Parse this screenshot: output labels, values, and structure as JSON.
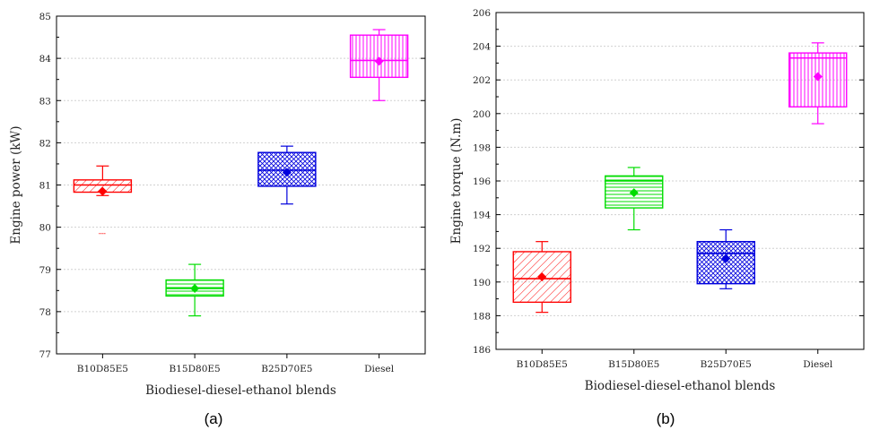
{
  "chart_data": [
    {
      "type": "box",
      "panel_label": "(a)",
      "xlabel": "Biodiesel-diesel-ethanol blends",
      "ylabel": "Engine power (kW)",
      "ylim": [
        77,
        85
      ],
      "yticks": [
        77,
        78,
        79,
        80,
        81,
        82,
        83,
        84,
        85
      ],
      "grid": true,
      "categories": [
        "B10D85E5",
        "B15D80E5",
        "B25D70E5",
        "Diesel"
      ],
      "boxes": [
        {
          "category": "B10D85E5",
          "color": "#ff0000",
          "pattern": "diagonal",
          "whisker_low": 80.75,
          "q1": 80.83,
          "median": 81.0,
          "q3": 81.12,
          "whisker_high": 81.45,
          "mean": 80.85,
          "outliers": [
            79.85
          ]
        },
        {
          "category": "B15D80E5",
          "color": "#00dd00",
          "pattern": "horizontal",
          "whisker_low": 77.9,
          "q1": 78.37,
          "median": 78.55,
          "q3": 78.75,
          "whisker_high": 79.12,
          "mean": 78.55,
          "outliers": []
        },
        {
          "category": "B25D70E5",
          "color": "#0000dd",
          "pattern": "crosshatch",
          "whisker_low": 80.55,
          "q1": 80.97,
          "median": 81.35,
          "q3": 81.77,
          "whisker_high": 81.92,
          "mean": 81.3,
          "outliers": []
        },
        {
          "category": "Diesel",
          "color": "#ff00ff",
          "pattern": "vertical",
          "whisker_low": 83.0,
          "q1": 83.55,
          "median": 83.95,
          "q3": 84.55,
          "whisker_high": 84.68,
          "mean": 83.93,
          "outliers": []
        }
      ]
    },
    {
      "type": "box",
      "panel_label": "(b)",
      "xlabel": "Biodiesel-diesel-ethanol blends",
      "ylabel": "Engine torque (N.m)",
      "ylim": [
        186,
        206
      ],
      "yticks": [
        186,
        188,
        190,
        192,
        194,
        196,
        198,
        200,
        202,
        204,
        206
      ],
      "grid": true,
      "categories": [
        "B10D85E5",
        "B15D80E5",
        "B25D70E5",
        "Diesel"
      ],
      "boxes": [
        {
          "category": "B10D85E5",
          "color": "#ff0000",
          "pattern": "diagonal",
          "whisker_low": 188.2,
          "q1": 188.8,
          "median": 190.2,
          "q3": 191.8,
          "whisker_high": 192.4,
          "mean": 190.3,
          "outliers": []
        },
        {
          "category": "B15D80E5",
          "color": "#00dd00",
          "pattern": "horizontal",
          "whisker_low": 193.1,
          "q1": 194.4,
          "median": 196.0,
          "q3": 196.3,
          "whisker_high": 196.8,
          "mean": 195.3,
          "outliers": []
        },
        {
          "category": "B25D70E5",
          "color": "#0000dd",
          "pattern": "crosshatch",
          "whisker_low": 189.6,
          "q1": 189.9,
          "median": 191.7,
          "q3": 192.4,
          "whisker_high": 193.1,
          "mean": 191.4,
          "outliers": []
        },
        {
          "category": "Diesel",
          "color": "#ff00ff",
          "pattern": "vertical",
          "whisker_low": 199.4,
          "q1": 200.4,
          "median": 203.3,
          "q3": 203.6,
          "whisker_high": 204.2,
          "mean": 202.2,
          "outliers": []
        }
      ]
    }
  ]
}
